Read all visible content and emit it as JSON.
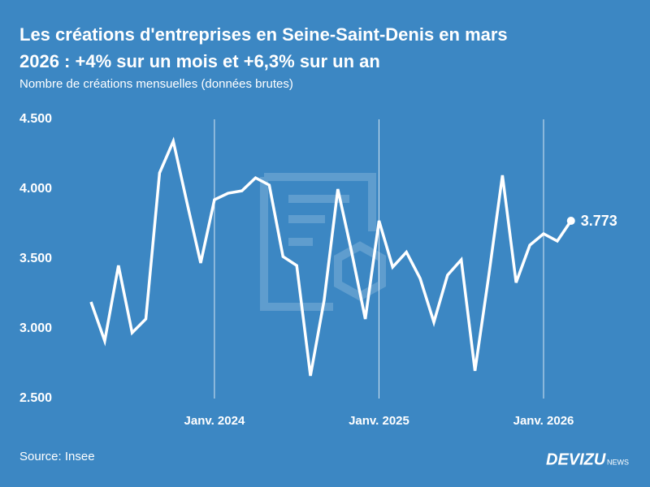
{
  "chart_data": {
    "type": "line",
    "title": "Les créations d'entreprises en Seine-Saint-Denis en mars",
    "title_line2": "2026 : +4% sur un mois et +6,3% sur un an",
    "subtitle": "Nombre de créations mensuelles (données brutes)",
    "source": "Source: Insee",
    "brand": "DEVIZU",
    "brand_suffix": "NEWS",
    "categories": [
      null,
      null,
      null,
      null,
      null,
      null,
      null,
      null,
      null,
      "Janv. 2024",
      null,
      null,
      null,
      null,
      null,
      null,
      null,
      null,
      null,
      null,
      null,
      "Janv. 2025",
      null,
      null,
      null,
      null,
      null,
      null,
      null,
      null,
      null,
      null,
      null,
      "Janv. 2026",
      null,
      null
    ],
    "series": [
      {
        "name": "Créations mensuelles",
        "color": "#ffffff",
        "values": [
          3192,
          2913,
          3453,
          2971,
          3070,
          4116,
          4343,
          3901,
          3471,
          3924,
          3971,
          3988,
          4081,
          4029,
          3517,
          3453,
          2663,
          3203,
          4000,
          3552,
          3070,
          3773,
          3442,
          3549,
          3360,
          3047,
          3384,
          3494,
          2698,
          3378,
          4099,
          3331,
          3599,
          3680,
          3628,
          3773
        ],
        "value_labels": [
          null,
          null,
          null,
          null,
          null,
          null,
          null,
          null,
          null,
          null,
          null,
          null,
          null,
          null,
          null,
          null,
          null,
          null,
          null,
          null,
          null,
          null,
          null,
          null,
          null,
          null,
          null,
          null,
          null,
          null,
          null,
          null,
          null,
          null,
          null,
          "3.773"
        ]
      }
    ],
    "ylim": [
      2500,
      4500
    ],
    "yticks": [
      {
        "value": 2500,
        "label": "2.500"
      },
      {
        "value": 3000,
        "label": "3.000"
      },
      {
        "value": 3500,
        "label": "3.500"
      },
      {
        "value": 4000,
        "label": "4.000"
      },
      {
        "value": 4500,
        "label": "4.500"
      }
    ],
    "background": "#3c87c3",
    "grid": true
  }
}
